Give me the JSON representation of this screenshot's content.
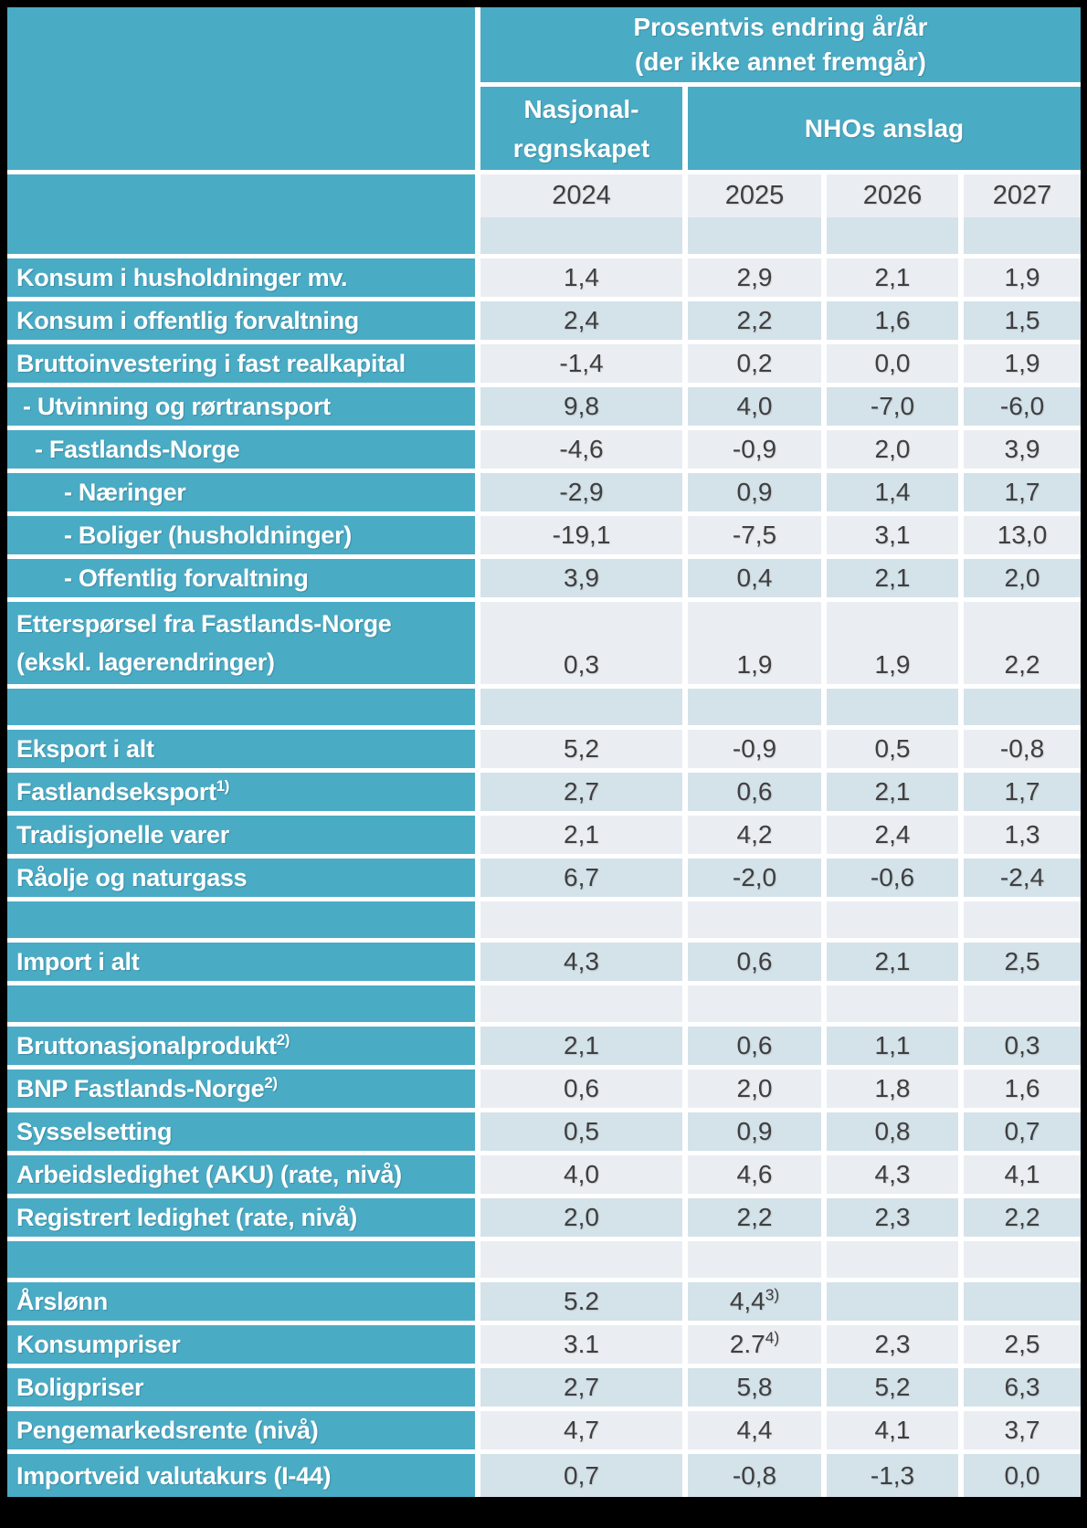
{
  "colors": {
    "teal": "#4aabc5",
    "row_light": "#eaeef2",
    "row_dark": "#d4e2ea",
    "value_text": "#3f3f3f",
    "header_text": "#ffffff",
    "frame": "#000000"
  },
  "chart_data": {
    "type": "table",
    "title": "Prosentvis endring år/år (der ikke annet fremgår)",
    "title_line1": "Prosentvis endring år/år",
    "title_line2": "(der ikke annet fremgår)",
    "group1_line1": "Nasjonal-",
    "group1_line2": "regnskapet",
    "group1": "Nasjonalregnskapet",
    "group2": "NHOs anslag",
    "columns": [
      "2024",
      "2025",
      "2026",
      "2027"
    ],
    "rows": [
      {
        "type": "spacer",
        "shade": "dark",
        "values": [
          "",
          "",
          "",
          ""
        ]
      },
      {
        "label": "Konsum i husholdninger mv.",
        "indent": 0,
        "shade": "light",
        "values": [
          "1,4",
          "2,9",
          "2,1",
          "1,9"
        ]
      },
      {
        "label": "Konsum i offentlig forvaltning",
        "indent": 0,
        "shade": "dark",
        "values": [
          "2,4",
          "2,2",
          "1,6",
          "1,5"
        ]
      },
      {
        "label": "Bruttoinvestering i fast realkapital",
        "indent": 0,
        "shade": "light",
        "values": [
          "-1,4",
          "0,2",
          "0,0",
          "1,9"
        ]
      },
      {
        "label": "- Utvinning og rørtransport",
        "indent": 1,
        "shade": "dark",
        "values": [
          "9,8",
          "4,0",
          "-7,0",
          "-6,0"
        ]
      },
      {
        "label": "- Fastlands-Norge",
        "indent": 2,
        "shade": "light",
        "values": [
          "-4,6",
          "-0,9",
          "2,0",
          "3,9"
        ]
      },
      {
        "label": "- Næringer",
        "indent": 3,
        "shade": "dark",
        "values": [
          "-2,9",
          "0,9",
          "1,4",
          "1,7"
        ]
      },
      {
        "label": "- Boliger (husholdninger)",
        "indent": 3,
        "shade": "light",
        "values": [
          "-19,1",
          "-7,5",
          "3,1",
          "13,0"
        ]
      },
      {
        "label": "- Offentlig forvaltning",
        "indent": 3,
        "shade": "dark",
        "values": [
          "3,9",
          "0,4",
          "2,1",
          "2,0"
        ]
      },
      {
        "type": "tall",
        "label": "Etterspørsel fra Fastlands-Norge",
        "label2": "(ekskl. lagerendringer)",
        "indent": 0,
        "shade": "light",
        "values": [
          "0,3",
          "1,9",
          "1,9",
          "2,2"
        ]
      },
      {
        "type": "spacer",
        "shade": "dark",
        "values": [
          "",
          "",
          "",
          ""
        ]
      },
      {
        "label": "Eksport i alt",
        "indent": 0,
        "shade": "light",
        "values": [
          "5,2",
          "-0,9",
          "0,5",
          "-0,8"
        ]
      },
      {
        "label": "Fastlandseksport",
        "label_sup": "1)",
        "indent": 0,
        "shade": "dark",
        "values": [
          "2,7",
          "0,6",
          "2,1",
          "1,7"
        ]
      },
      {
        "label": "Tradisjonelle varer",
        "indent": 0,
        "shade": "light",
        "values": [
          "2,1",
          "4,2",
          "2,4",
          "1,3"
        ]
      },
      {
        "label": "Råolje og naturgass",
        "indent": 0,
        "shade": "dark",
        "values": [
          "6,7",
          "-2,0",
          "-0,6",
          "-2,4"
        ]
      },
      {
        "type": "spacer",
        "shade": "light",
        "values": [
          "",
          "",
          "",
          ""
        ]
      },
      {
        "label": "Import i alt",
        "indent": 0,
        "shade": "dark",
        "values": [
          "4,3",
          "0,6",
          "2,1",
          "2,5"
        ]
      },
      {
        "type": "spacer",
        "shade": "light",
        "values": [
          "",
          "",
          "",
          ""
        ]
      },
      {
        "label": "Bruttonasjonalprodukt",
        "label_sup": "2)",
        "indent": 0,
        "shade": "dark",
        "values": [
          "2,1",
          "0,6",
          "1,1",
          "0,3"
        ]
      },
      {
        "label": "BNP Fastlands-Norge",
        "label_sup": "2)",
        "indent": 0,
        "shade": "light",
        "values": [
          "0,6",
          "2,0",
          "1,8",
          "1,6"
        ]
      },
      {
        "label": "Sysselsetting",
        "indent": 0,
        "shade": "dark",
        "values": [
          "0,5",
          "0,9",
          "0,8",
          "0,7"
        ]
      },
      {
        "label": "Arbeidsledighet (AKU) (rate, nivå)",
        "indent": 0,
        "shade": "light",
        "values": [
          "4,0",
          "4,6",
          "4,3",
          "4,1"
        ]
      },
      {
        "label": "Registrert ledighet (rate, nivå)",
        "indent": 0,
        "shade": "dark",
        "values": [
          "2,0",
          "2,2",
          "2,3",
          "2,2"
        ]
      },
      {
        "type": "spacer",
        "shade": "light",
        "values": [
          "",
          "",
          "",
          ""
        ]
      },
      {
        "label": "Årslønn",
        "indent": 0,
        "shade": "dark",
        "values": [
          "5.2",
          "4,4",
          "",
          ""
        ],
        "value_sups": {
          "1": "3)"
        }
      },
      {
        "label": "Konsumpriser",
        "indent": 0,
        "shade": "light",
        "values": [
          "3.1",
          "2.7",
          "2,3",
          "2,5"
        ],
        "value_sups": {
          "1": "4)"
        }
      },
      {
        "label": "Boligpriser",
        "indent": 0,
        "shade": "dark",
        "values": [
          "2,7",
          "5,8",
          "5,2",
          "6,3"
        ]
      },
      {
        "label": "Pengemarkedsrente (nivå)",
        "indent": 0,
        "shade": "light",
        "values": [
          "4,7",
          "4,4",
          "4,1",
          "3,7"
        ]
      },
      {
        "label": "Importveid valutakurs (I-44)",
        "indent": 0,
        "shade": "dark",
        "values": [
          "0,7",
          "-0,8",
          "-1,3",
          "0,0"
        ]
      }
    ]
  }
}
